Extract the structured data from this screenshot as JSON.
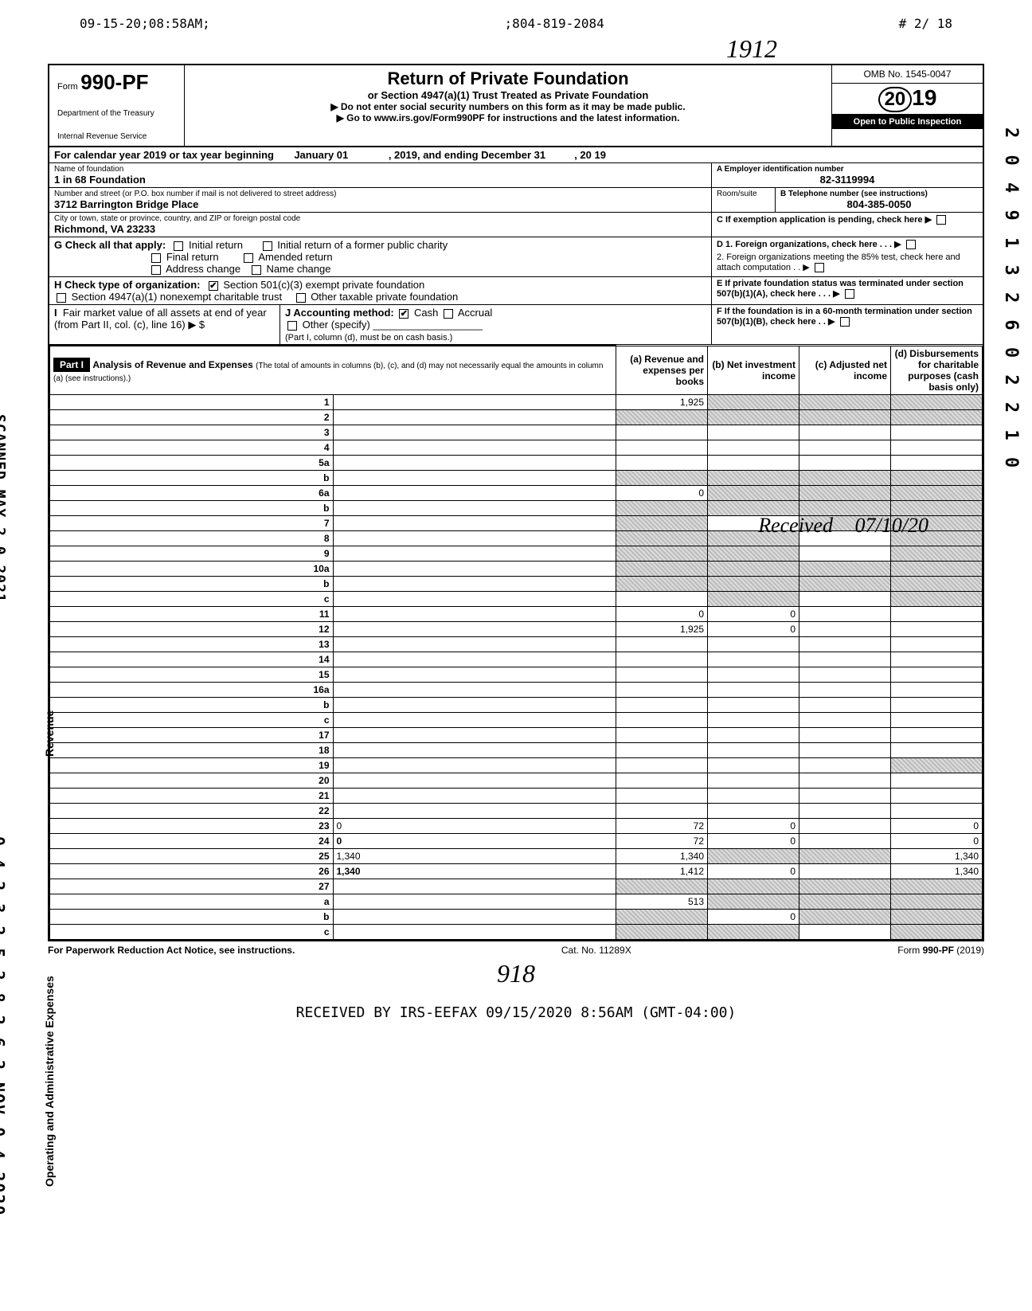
{
  "fax": {
    "timestamp": "09-15-20;08:58AM;",
    "phone": ";804-819-2084",
    "page": "#  2/ 18"
  },
  "handwritten_top": "1912",
  "header": {
    "form_word": "Form",
    "form_number": "990-PF",
    "dept1": "Department of the Treasury",
    "dept2": "Internal Revenue Service",
    "title": "Return of Private Foundation",
    "subtitle": "or Section 4947(a)(1) Trust Treated as Private Foundation",
    "note1": "▶ Do not enter social security numbers on this form as it may be made public.",
    "note2": "▶ Go to www.irs.gov/Form990PF for instructions and the latest information.",
    "omb": "OMB No. 1545-0047",
    "year_big": "19",
    "year_prefix": "20",
    "open_inspection": "Open to Public Inspection"
  },
  "cal": {
    "line": "For calendar year 2019 or tax year beginning",
    "start": "January 01",
    "mid": ", 2019, and ending December 31",
    "end": ", 20 19"
  },
  "ident": {
    "name_label": "Name of foundation",
    "name": "1 in 68 Foundation",
    "ein_label": "A  Employer identification number",
    "ein": "82-3119994",
    "addr_label": "Number and street (or P.O. box number if mail is not delivered to street address)",
    "addr": "3712 Barrington Bridge Place",
    "room_label": "Room/suite",
    "phone_label": "B  Telephone number (see instructions)",
    "phone": "804-385-0050",
    "city_label": "City or town, state or province, country, and ZIP or foreign postal code",
    "city": "Richmond, VA 23233",
    "c_label": "C  If exemption application is pending, check here ▶"
  },
  "boxG": {
    "label": "G  Check all that apply:",
    "o1": "Initial return",
    "o2": "Initial return of a former public charity",
    "o3": "Final return",
    "o4": "Amended return",
    "o5": "Address change",
    "o6": "Name change",
    "d1": "D  1. Foreign organizations, check here . . . ▶",
    "d2": "2. Foreign organizations meeting the 85% test, check here and attach computation  . . ▶"
  },
  "boxH": {
    "label": "H  Check type of organization:",
    "o1": "Section 501(c)(3) exempt private foundation",
    "o2": "Section 4947(a)(1) nonexempt charitable trust",
    "o3": "Other taxable private foundation",
    "e1": "E  If private foundation status was terminated under section 507(b)(1)(A), check here  . . . ▶"
  },
  "boxI": {
    "label": "I",
    "l1": "Fair market value of all assets at end of year (from Part II, col. (c), line 16) ▶ $",
    "j": "J  Accounting method:",
    "j1": "Cash",
    "j2": "Accrual",
    "j3": "Other (specify)",
    "j4": "(Part I, column (d), must be on cash basis.)",
    "f1": "F  If the foundation is in a 60-month termination under section 507(b)(1)(B), check here  . . ▶"
  },
  "part1": {
    "label": "Part I",
    "title": "Analysis of Revenue and Expenses",
    "title2": "(The total of amounts in columns (b), (c), and (d) may not necessarily equal the amounts in column (a) (see instructions).)",
    "col_a": "(a) Revenue and expenses per books",
    "col_b": "(b) Net investment income",
    "col_c": "(c) Adjusted net income",
    "col_d": "(d) Disbursements for charitable purposes (cash basis only)"
  },
  "side_revenue": "Revenue",
  "side_expenses": "Operating and Administrative Expenses",
  "side_scanned": "SCANNED MAY 2 0 2021",
  "side_id": "0 4 2 3 2 5 2 8 2 6 2 NOV 0 4 2020",
  "right_vertical": "2 0 4 9 1 3 2 6 0 2 2 1 0",
  "rows": [
    {
      "n": "1",
      "d": "",
      "a": "1,925",
      "b": "",
      "c": "",
      "sb": true,
      "sc": true,
      "sd": true
    },
    {
      "n": "2",
      "d": "",
      "a": "",
      "b": "",
      "c": "",
      "sa": true,
      "sb": true,
      "sc": true,
      "sd": true
    },
    {
      "n": "3",
      "d": "",
      "a": "",
      "b": "",
      "c": ""
    },
    {
      "n": "4",
      "d": "",
      "a": "",
      "b": "",
      "c": ""
    },
    {
      "n": "5a",
      "d": "",
      "a": "",
      "b": "",
      "c": ""
    },
    {
      "n": "b",
      "d": "",
      "a": "",
      "b": "",
      "c": "",
      "sa": true,
      "sb": true,
      "sc": true,
      "sd": true
    },
    {
      "n": "6a",
      "d": "",
      "a": "0",
      "b": "",
      "c": "",
      "sb": true,
      "sc": true,
      "sd": true
    },
    {
      "n": "b",
      "d": "",
      "a": "",
      "b": "",
      "c": "",
      "sa": true,
      "sb": true,
      "sc": true,
      "sd": true
    },
    {
      "n": "7",
      "d": "",
      "a": "",
      "b": "",
      "c": "",
      "sa": true,
      "sc": true,
      "sd": true
    },
    {
      "n": "8",
      "d": "",
      "a": "",
      "b": "",
      "c": "",
      "sa": true,
      "sb": true,
      "sd": true
    },
    {
      "n": "9",
      "d": "",
      "a": "",
      "b": "",
      "c": "",
      "sa": true,
      "sb": true,
      "sd": true
    },
    {
      "n": "10a",
      "d": "",
      "a": "",
      "b": "",
      "c": "",
      "sa": true,
      "sb": true,
      "sc": true,
      "sd": true
    },
    {
      "n": "b",
      "d": "",
      "a": "",
      "b": "",
      "c": "",
      "sa": true,
      "sb": true,
      "sc": true,
      "sd": true
    },
    {
      "n": "c",
      "d": "",
      "a": "",
      "b": "",
      "c": "",
      "sb": true,
      "sd": true
    },
    {
      "n": "11",
      "d": "",
      "a": "0",
      "b": "0",
      "c": ""
    },
    {
      "n": "12",
      "d": "",
      "a": "1,925",
      "b": "0",
      "c": "",
      "bold": true
    },
    {
      "n": "13",
      "d": "",
      "a": "",
      "b": "",
      "c": ""
    },
    {
      "n": "14",
      "d": "",
      "a": "",
      "b": "",
      "c": ""
    },
    {
      "n": "15",
      "d": "",
      "a": "",
      "b": "",
      "c": ""
    },
    {
      "n": "16a",
      "d": "",
      "a": "",
      "b": "",
      "c": ""
    },
    {
      "n": "b",
      "d": "",
      "a": "",
      "b": "",
      "c": ""
    },
    {
      "n": "c",
      "d": "",
      "a": "",
      "b": "",
      "c": ""
    },
    {
      "n": "17",
      "d": "",
      "a": "",
      "b": "",
      "c": ""
    },
    {
      "n": "18",
      "d": "",
      "a": "",
      "b": "",
      "c": ""
    },
    {
      "n": "19",
      "d": "",
      "a": "",
      "b": "",
      "c": "",
      "sd": true
    },
    {
      "n": "20",
      "d": "",
      "a": "",
      "b": "",
      "c": ""
    },
    {
      "n": "21",
      "d": "",
      "a": "",
      "b": "",
      "c": ""
    },
    {
      "n": "22",
      "d": "",
      "a": "",
      "b": "",
      "c": ""
    },
    {
      "n": "23",
      "d": "0",
      "a": "72",
      "b": "0",
      "c": ""
    },
    {
      "n": "24",
      "d": "0",
      "a": "72",
      "b": "0",
      "c": "",
      "bold": true
    },
    {
      "n": "25",
      "d": "1,340",
      "a": "1,340",
      "b": "",
      "c": "",
      "sb": true,
      "sc": true
    },
    {
      "n": "26",
      "d": "1,340",
      "a": "1,412",
      "b": "0",
      "c": "",
      "bold": true
    },
    {
      "n": "27",
      "d": "",
      "a": "",
      "b": "",
      "c": "",
      "sa": true,
      "sb": true,
      "sc": true,
      "sd": true
    },
    {
      "n": "a",
      "d": "",
      "a": "513",
      "b": "",
      "c": "",
      "sb": true,
      "sc": true,
      "sd": true,
      "bold": true
    },
    {
      "n": "b",
      "d": "",
      "a": "",
      "b": "0",
      "c": "",
      "sa": true,
      "sc": true,
      "sd": true,
      "bold": true
    },
    {
      "n": "c",
      "d": "",
      "a": "",
      "b": "",
      "c": "",
      "sa": true,
      "sb": true,
      "sd": true,
      "bold": true
    }
  ],
  "stamp_c": "Received",
  "stamp_d": "07/10/20",
  "footer": {
    "left": "For Paperwork Reduction Act Notice, see instructions.",
    "mid": "Cat. No. 11289X",
    "right": "Form 990-PF (2019)"
  },
  "handwritten_bottom": "918",
  "received": "RECEIVED BY IRS-EEFAX    09/15/2020 8:56AM (GMT-04:00)"
}
